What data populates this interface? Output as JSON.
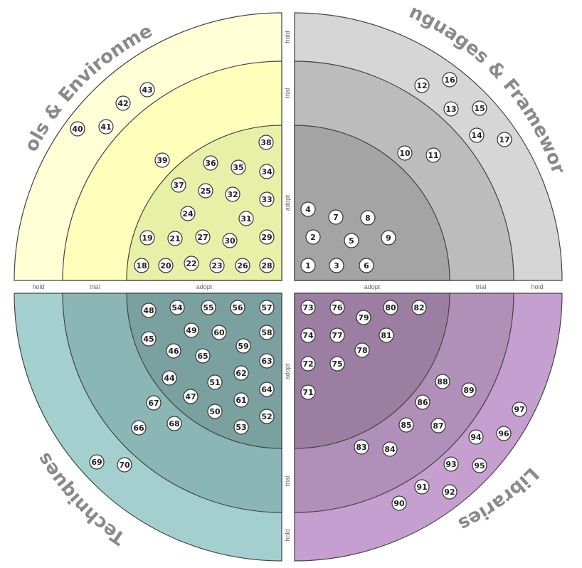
{
  "rings": [
    "adopt",
    "trial",
    "hold"
  ],
  "quadrants": [
    {
      "name": "Tools & Environment",
      "colors": [
        "#e8f0a8",
        "#ffffbb",
        "#ffffd6"
      ],
      "blips": [
        {
          "id": "18",
          "ring": "adopt"
        },
        {
          "id": "19",
          "ring": "adopt"
        },
        {
          "id": "20",
          "ring": "adopt"
        },
        {
          "id": "21",
          "ring": "adopt"
        },
        {
          "id": "22",
          "ring": "adopt"
        },
        {
          "id": "23",
          "ring": "adopt"
        },
        {
          "id": "24",
          "ring": "adopt"
        },
        {
          "id": "25",
          "ring": "adopt"
        },
        {
          "id": "26",
          "ring": "adopt"
        },
        {
          "id": "27",
          "ring": "adopt"
        },
        {
          "id": "28",
          "ring": "adopt"
        },
        {
          "id": "29",
          "ring": "adopt"
        },
        {
          "id": "30",
          "ring": "adopt"
        },
        {
          "id": "31",
          "ring": "adopt"
        },
        {
          "id": "32",
          "ring": "adopt"
        },
        {
          "id": "33",
          "ring": "adopt"
        },
        {
          "id": "34",
          "ring": "adopt"
        },
        {
          "id": "35",
          "ring": "adopt"
        },
        {
          "id": "36",
          "ring": "adopt"
        },
        {
          "id": "37",
          "ring": "adopt"
        },
        {
          "id": "38",
          "ring": "adopt"
        },
        {
          "id": "39",
          "ring": "trial"
        },
        {
          "id": "40",
          "ring": "hold"
        },
        {
          "id": "41",
          "ring": "hold"
        },
        {
          "id": "42",
          "ring": "hold"
        },
        {
          "id": "43",
          "ring": "hold"
        }
      ]
    },
    {
      "name": "Languages & Frameworks",
      "colors": [
        "#a4a4a4",
        "#bcbcbc",
        "#d6d6d6"
      ],
      "blips": [
        {
          "id": "1",
          "ring": "adopt"
        },
        {
          "id": "2",
          "ring": "adopt"
        },
        {
          "id": "3",
          "ring": "adopt"
        },
        {
          "id": "4",
          "ring": "adopt"
        },
        {
          "id": "5",
          "ring": "adopt"
        },
        {
          "id": "6",
          "ring": "adopt"
        },
        {
          "id": "7",
          "ring": "adopt"
        },
        {
          "id": "8",
          "ring": "adopt"
        },
        {
          "id": "9",
          "ring": "adopt"
        },
        {
          "id": "10",
          "ring": "trial"
        },
        {
          "id": "11",
          "ring": "trial"
        },
        {
          "id": "12",
          "ring": "hold"
        },
        {
          "id": "13",
          "ring": "hold"
        },
        {
          "id": "14",
          "ring": "hold"
        },
        {
          "id": "15",
          "ring": "hold"
        },
        {
          "id": "16",
          "ring": "hold"
        },
        {
          "id": "17",
          "ring": "hold"
        }
      ]
    },
    {
      "name": "Techniques",
      "colors": [
        "#7aa0a0",
        "#8bb6b6",
        "#a3cfcf"
      ],
      "blips": [
        {
          "id": "44",
          "ring": "adopt"
        },
        {
          "id": "45",
          "ring": "adopt"
        },
        {
          "id": "46",
          "ring": "adopt"
        },
        {
          "id": "47",
          "ring": "adopt"
        },
        {
          "id": "48",
          "ring": "adopt"
        },
        {
          "id": "49",
          "ring": "adopt"
        },
        {
          "id": "50",
          "ring": "adopt"
        },
        {
          "id": "51",
          "ring": "adopt"
        },
        {
          "id": "52",
          "ring": "adopt"
        },
        {
          "id": "53",
          "ring": "adopt"
        },
        {
          "id": "54",
          "ring": "adopt"
        },
        {
          "id": "55",
          "ring": "adopt"
        },
        {
          "id": "56",
          "ring": "adopt"
        },
        {
          "id": "57",
          "ring": "adopt"
        },
        {
          "id": "58",
          "ring": "adopt"
        },
        {
          "id": "59",
          "ring": "adopt"
        },
        {
          "id": "60",
          "ring": "adopt"
        },
        {
          "id": "61",
          "ring": "adopt"
        },
        {
          "id": "62",
          "ring": "adopt"
        },
        {
          "id": "63",
          "ring": "adopt"
        },
        {
          "id": "64",
          "ring": "adopt"
        },
        {
          "id": "65",
          "ring": "adopt"
        },
        {
          "id": "66",
          "ring": "trial"
        },
        {
          "id": "67",
          "ring": "trial"
        },
        {
          "id": "68",
          "ring": "trial"
        },
        {
          "id": "69",
          "ring": "hold"
        },
        {
          "id": "70",
          "ring": "hold"
        }
      ]
    },
    {
      "name": "Libraries",
      "colors": [
        "#9c7ea2",
        "#b08fb8",
        "#c49fcf"
      ],
      "blips": [
        {
          "id": "71",
          "ring": "adopt"
        },
        {
          "id": "72",
          "ring": "adopt"
        },
        {
          "id": "73",
          "ring": "adopt"
        },
        {
          "id": "74",
          "ring": "adopt"
        },
        {
          "id": "75",
          "ring": "adopt"
        },
        {
          "id": "76",
          "ring": "adopt"
        },
        {
          "id": "77",
          "ring": "adopt"
        },
        {
          "id": "78",
          "ring": "adopt"
        },
        {
          "id": "79",
          "ring": "adopt"
        },
        {
          "id": "80",
          "ring": "adopt"
        },
        {
          "id": "81",
          "ring": "adopt"
        },
        {
          "id": "82",
          "ring": "adopt"
        },
        {
          "id": "83",
          "ring": "trial"
        },
        {
          "id": "84",
          "ring": "trial"
        },
        {
          "id": "85",
          "ring": "trial"
        },
        {
          "id": "86",
          "ring": "trial"
        },
        {
          "id": "87",
          "ring": "trial"
        },
        {
          "id": "88",
          "ring": "trial"
        },
        {
          "id": "89",
          "ring": "trial"
        },
        {
          "id": "90",
          "ring": "hold"
        },
        {
          "id": "91",
          "ring": "hold"
        },
        {
          "id": "92",
          "ring": "hold"
        },
        {
          "id": "93",
          "ring": "hold"
        },
        {
          "id": "94",
          "ring": "hold"
        },
        {
          "id": "95",
          "ring": "hold"
        },
        {
          "id": "96",
          "ring": "hold"
        },
        {
          "id": "97",
          "ring": "hold"
        }
      ]
    }
  ]
}
